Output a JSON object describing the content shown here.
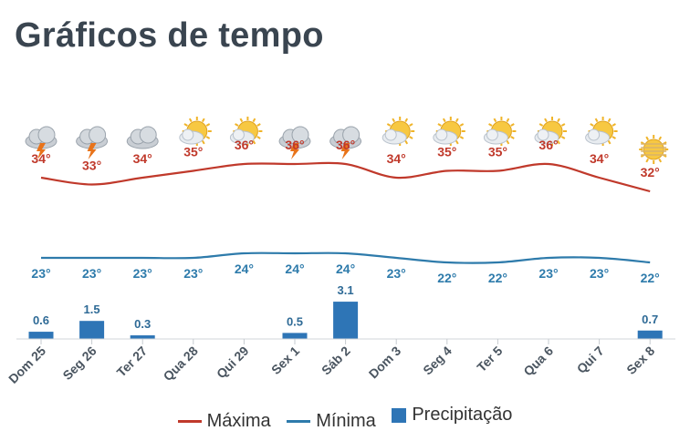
{
  "page": {
    "title": "Gráficos de tempo"
  },
  "chart_data": {
    "type": "line",
    "categories": [
      "Dom 25",
      "Seg 26",
      "Ter 27",
      "Qua 28",
      "Qui 29",
      "Sex 1",
      "Sáb 2",
      "Dom 3",
      "Seg 4",
      "Ter 5",
      "Qua 6",
      "Qui 7",
      "Sex 8"
    ],
    "icons": [
      "storm-cloud-icon",
      "storm-cloud-icon",
      "cloud-icon",
      "partly-sunny-icon",
      "partly-sunny-icon",
      "storm-cloud-icon",
      "storm-cloud-icon",
      "partly-sunny-icon",
      "partly-sunny-icon",
      "partly-sunny-icon",
      "partly-sunny-icon",
      "partly-sunny-icon",
      "hazy-sun-icon"
    ],
    "series": [
      {
        "name": "Máxima",
        "color": "#c0392b",
        "values": [
          34,
          33,
          34,
          35,
          36,
          36,
          36,
          34,
          35,
          35,
          36,
          34,
          32
        ],
        "labels": [
          "34°",
          "33°",
          "34°",
          "35°",
          "36°",
          "36°",
          "36°",
          "34°",
          "35°",
          "35°",
          "36°",
          "34°",
          "32°"
        ]
      },
      {
        "name": "Mínima",
        "color": "#2e7bab",
        "values": [
          23,
          23,
          23,
          23,
          24,
          24,
          24,
          23,
          22,
          22,
          23,
          23,
          22
        ],
        "labels": [
          "23°",
          "23°",
          "23°",
          "23°",
          "24°",
          "24°",
          "24°",
          "23°",
          "22°",
          "22°",
          "23°",
          "23°",
          "22°"
        ]
      },
      {
        "name": "Precipitação",
        "color": "#2e75b6",
        "type": "bar",
        "values": [
          0.6,
          1.5,
          0.3,
          0,
          0,
          0.5,
          3.1,
          0,
          0,
          0,
          0,
          0,
          0.7
        ],
        "labels": [
          "0.6",
          "1.5",
          "0.3",
          "",
          "",
          "0.5",
          "3.1",
          "",
          "",
          "",
          "",
          "",
          "0.7"
        ]
      }
    ],
    "legend_position": "bottom"
  }
}
